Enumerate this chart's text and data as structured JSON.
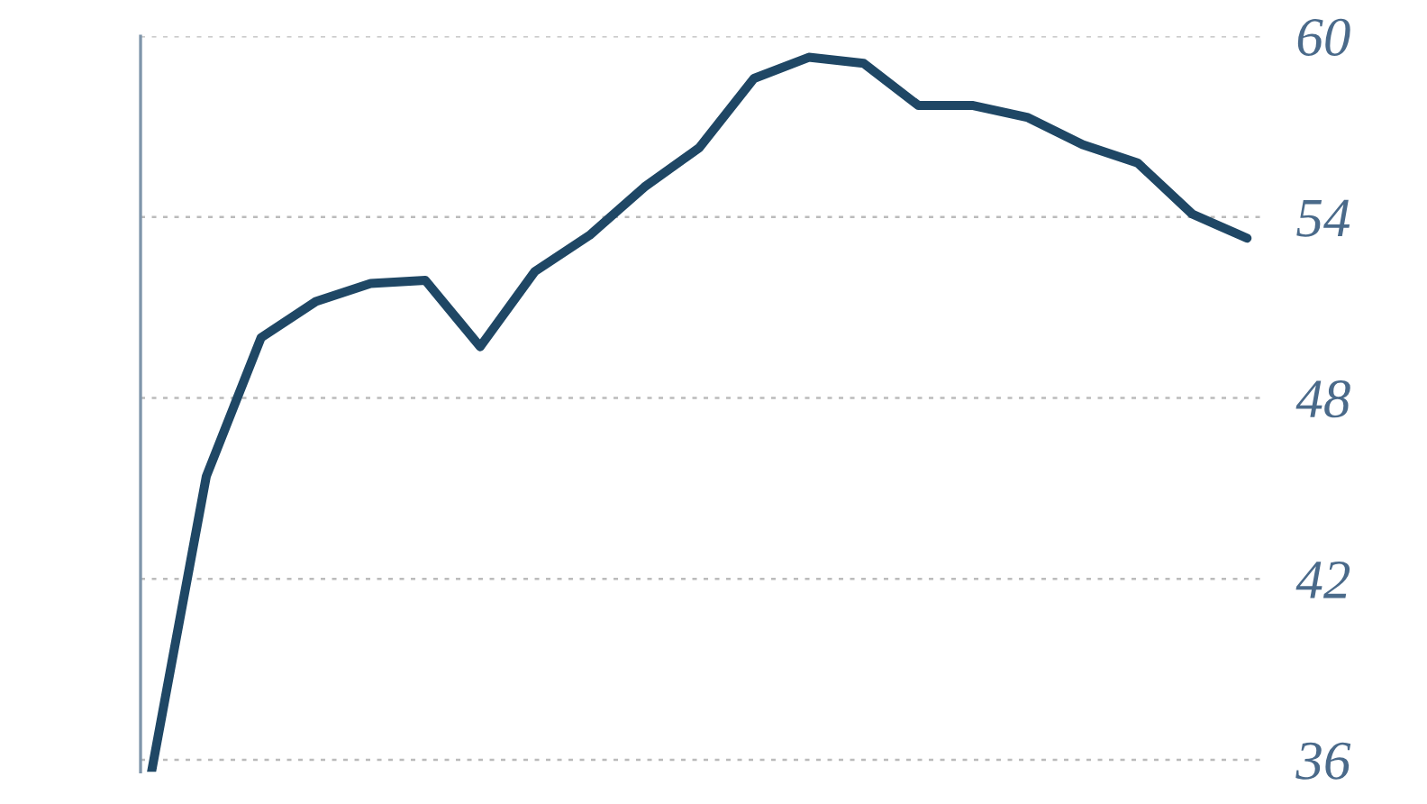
{
  "chart_data": {
    "type": "line",
    "categories": [
      null,
      null,
      null,
      null,
      null,
      null,
      null,
      null,
      null,
      null,
      null,
      null,
      null,
      null,
      null,
      null,
      null,
      null,
      null,
      null,
      null
    ],
    "series": [
      {
        "color": "#1f4765",
        "values": [
          35.6,
          45.4,
          50.0,
          51.2,
          51.8,
          51.9,
          49.7,
          52.2,
          53.4,
          55.0,
          56.3,
          58.6,
          59.3,
          59.1,
          57.7,
          57.7,
          57.3,
          56.4,
          55.8,
          54.1,
          53.3
        ]
      }
    ],
    "ylim": [
      35.6,
      60
    ],
    "yticks": [
      36,
      42,
      48,
      54,
      60
    ],
    "grid": "y",
    "tick_labels": "y",
    "legend": false,
    "marker": "none",
    "line_style": "solid"
  }
}
